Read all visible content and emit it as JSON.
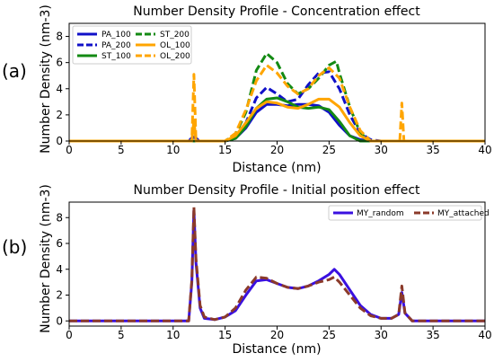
{
  "panels": [
    "(a)",
    "(b)"
  ],
  "chart_data": [
    {
      "type": "line",
      "title": "Number Density Profile - Concentration effect",
      "xlabel": "Distance (nm)",
      "ylabel": "Number Density (nm-3)",
      "xlim": [
        0,
        40
      ],
      "ylim": [
        0,
        9
      ],
      "xticks": [
        0,
        5,
        10,
        15,
        20,
        25,
        30,
        35,
        40
      ],
      "yticks": [
        0,
        2,
        4,
        6,
        8
      ],
      "legend": "top-left",
      "grid": false,
      "series": [
        {
          "name": "PA_100",
          "color": "#1010c8",
          "dash": "solid",
          "x": [
            0,
            11.5,
            12,
            12.5,
            15,
            16,
            17,
            18,
            19,
            20,
            21,
            22,
            23,
            24,
            25,
            26,
            27,
            28,
            29,
            40
          ],
          "y": [
            0,
            0,
            0.3,
            0,
            0,
            0.2,
            1.0,
            2.2,
            2.8,
            2.8,
            2.7,
            2.8,
            2.8,
            2.7,
            2.2,
            1.2,
            0.4,
            0.1,
            0,
            0
          ]
        },
        {
          "name": "PA_200",
          "color": "#1010c8",
          "dash": "dashed",
          "x": [
            0,
            11.5,
            12,
            12.5,
            15,
            16,
            17,
            18,
            19,
            20,
            21,
            22,
            23,
            24,
            25,
            26,
            27,
            28,
            29,
            30,
            40
          ],
          "y": [
            0,
            0,
            0.4,
            0,
            0,
            0.3,
            1.4,
            3.3,
            4.1,
            3.6,
            3.0,
            3.2,
            4.3,
            5.2,
            5.3,
            4.0,
            2.0,
            0.6,
            0.1,
            0,
            0
          ]
        },
        {
          "name": "ST_100",
          "color": "#138a13",
          "dash": "solid",
          "x": [
            0,
            15,
            16,
            17,
            18,
            19,
            20,
            21,
            22,
            23,
            24,
            25,
            26,
            27,
            28,
            40
          ],
          "y": [
            0,
            0,
            0.2,
            1.1,
            2.5,
            3.2,
            3.3,
            3.0,
            2.6,
            2.5,
            2.6,
            2.4,
            1.5,
            0.4,
            0,
            0
          ]
        },
        {
          "name": "ST_200",
          "color": "#138a13",
          "dash": "dashed",
          "x": [
            0,
            15,
            16,
            17,
            18,
            19,
            20,
            21,
            22,
            23,
            24,
            25,
            25.7,
            26,
            27,
            28,
            29,
            40
          ],
          "y": [
            0,
            0,
            0.5,
            2.2,
            5.4,
            6.7,
            6.0,
            4.4,
            3.6,
            4.0,
            4.8,
            5.8,
            6.1,
            5.2,
            2.6,
            0.6,
            0,
            0
          ]
        },
        {
          "name": "OL_100",
          "color": "#ffa500",
          "dash": "solid",
          "x": [
            0,
            11.8,
            12,
            12.2,
            15,
            16,
            17,
            18,
            19,
            20,
            21,
            22,
            23,
            24,
            25,
            26,
            27,
            28,
            29,
            32,
            40
          ],
          "y": [
            0,
            0,
            1.6,
            0,
            0,
            0.4,
            1.4,
            2.5,
            3.0,
            2.9,
            2.6,
            2.5,
            2.8,
            3.2,
            3.2,
            2.6,
            1.4,
            0.4,
            0,
            0,
            0
          ]
        },
        {
          "name": "OL_200",
          "color": "#ffa500",
          "dash": "dashed",
          "x": [
            0,
            11.8,
            12,
            12.2,
            15,
            16,
            17,
            18,
            19,
            20,
            21,
            22,
            23,
            24,
            25,
            26,
            27,
            28,
            29,
            31.8,
            32,
            32.2,
            40
          ],
          "y": [
            0,
            0,
            5.1,
            0,
            0,
            0.6,
            2.4,
            4.6,
            5.8,
            5.2,
            4.2,
            3.6,
            4.0,
            5.0,
            5.6,
            4.8,
            2.6,
            0.8,
            0,
            0,
            2.9,
            0,
            0
          ]
        }
      ]
    },
    {
      "type": "line",
      "title": "Number Density Profile - Initial position effect",
      "xlabel": "Distance (nm)",
      "ylabel": "Number Density (nm-3)",
      "xlim": [
        0,
        40
      ],
      "ylim": [
        -0.4,
        9.2
      ],
      "xticks": [
        0,
        5,
        10,
        15,
        20,
        25,
        30,
        35,
        40
      ],
      "yticks": [
        0,
        2,
        4,
        6,
        8
      ],
      "legend": "top-right",
      "grid": false,
      "series": [
        {
          "name": "MY_random",
          "color": "#3a10e0",
          "dash": "solid",
          "x": [
            0,
            11.5,
            11.8,
            12,
            12.2,
            12.6,
            13,
            14,
            15,
            16,
            17,
            18,
            19,
            20,
            21,
            22,
            23,
            24,
            25,
            25.5,
            26,
            27,
            28,
            29,
            30,
            31,
            31.7,
            32,
            32.3,
            33,
            40
          ],
          "y": [
            0,
            0,
            3.0,
            8.6,
            4.5,
            1.0,
            0.2,
            0.1,
            0.3,
            0.8,
            2.0,
            3.1,
            3.2,
            2.9,
            2.6,
            2.5,
            2.7,
            3.1,
            3.6,
            4.0,
            3.6,
            2.4,
            1.2,
            0.5,
            0.2,
            0.2,
            0.5,
            2.2,
            0.6,
            0,
            0
          ]
        },
        {
          "name": "MY_attached",
          "color": "#8b3a2a",
          "dash": "dashed",
          "x": [
            0,
            11.5,
            11.8,
            12,
            12.2,
            12.6,
            13,
            14,
            15,
            16,
            17,
            18,
            19,
            20,
            21,
            22,
            23,
            24,
            25,
            25.5,
            26,
            27,
            28,
            29,
            30,
            31,
            31.7,
            32,
            32.3,
            33,
            40
          ],
          "y": [
            0,
            0,
            3.2,
            8.8,
            4.8,
            1.2,
            0.3,
            0.1,
            0.3,
            1.0,
            2.4,
            3.4,
            3.3,
            2.9,
            2.6,
            2.5,
            2.7,
            3.0,
            3.2,
            3.4,
            3.0,
            2.0,
            1.0,
            0.4,
            0.2,
            0.2,
            0.5,
            2.7,
            0.6,
            0,
            0
          ]
        }
      ]
    }
  ]
}
